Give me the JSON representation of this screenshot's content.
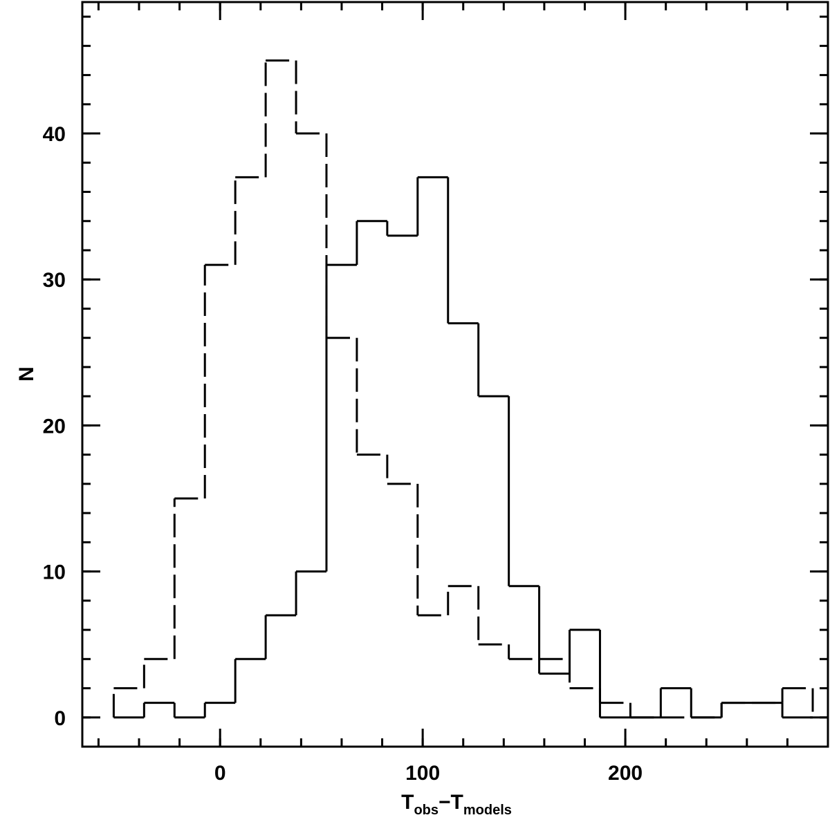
{
  "chart_data": {
    "type": "histogram",
    "xlabel": [
      "T",
      "obs",
      "−T",
      "models"
    ],
    "ylabel": "N",
    "bins": [
      -52.5,
      -37.5,
      -22.5,
      -7.5,
      7.5,
      22.5,
      37.5,
      52.5,
      67.5,
      82.5,
      97.5,
      112.5,
      127.5,
      142.5,
      157.5,
      172.5,
      187.5,
      202.5,
      217.5,
      232.5,
      247.5,
      262.5,
      277.5,
      292.5
    ],
    "series": [
      {
        "name": "solid",
        "color": "#000000",
        "dash": "none",
        "values": [
          0,
          1,
          0,
          1,
          4,
          7,
          10,
          31,
          34,
          33,
          37,
          27,
          22,
          9,
          3,
          6,
          0,
          0,
          2,
          0,
          1,
          1,
          0
        ]
      },
      {
        "name": "dashed",
        "color": "#000000",
        "dash": "34 10",
        "values": [
          2,
          4,
          15,
          31,
          37,
          45,
          40,
          26,
          18,
          16,
          7,
          9,
          5,
          4,
          4,
          2,
          1,
          0,
          0,
          0,
          1,
          1,
          2
        ]
      }
    ],
    "xlim": [
      -68,
      300
    ],
    "xticks": [
      0,
      100,
      200
    ],
    "ylim": [
      -2,
      49
    ],
    "yticks": [
      0,
      10,
      20,
      30,
      40
    ]
  }
}
